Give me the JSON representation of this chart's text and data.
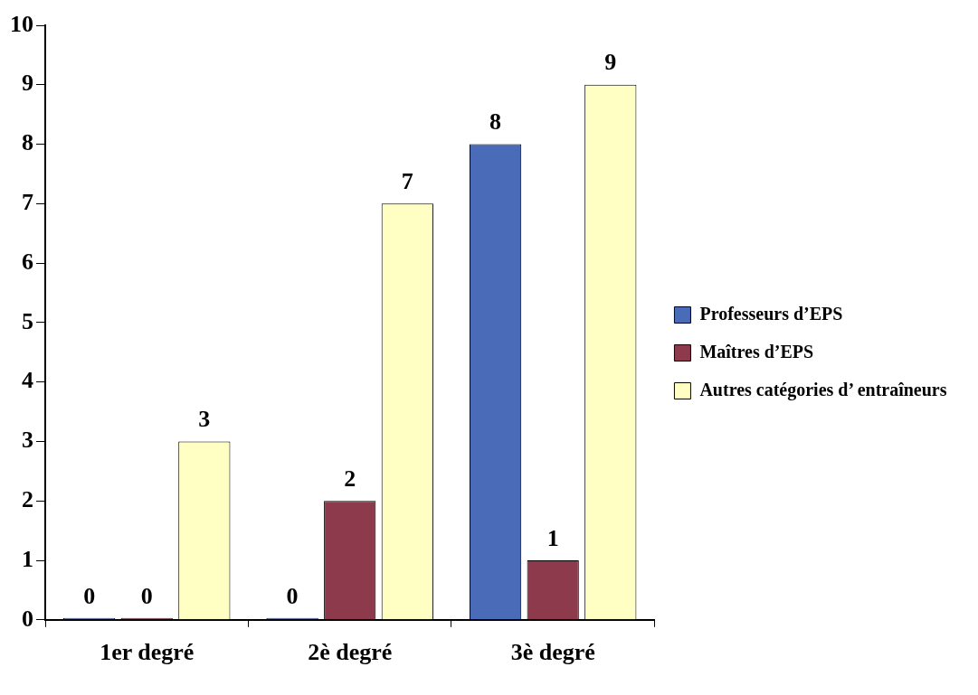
{
  "chart_data": {
    "type": "bar",
    "categories": [
      "1er degré",
      "2è degré",
      "3è degré"
    ],
    "series": [
      {
        "name": "Professeurs d’EPS",
        "color": "#4a6cb8",
        "values": [
          0,
          0,
          8
        ]
      },
      {
        "name": "Maîtres d’EPS",
        "color": "#8c3a4c",
        "values": [
          0,
          2,
          1
        ]
      },
      {
        "name": "Autres catégories d’ entraîneurs",
        "color": "#ffffc4",
        "values": [
          3,
          7,
          9
        ]
      }
    ],
    "ylim": [
      0,
      10
    ],
    "yticks": [
      0,
      1,
      2,
      3,
      4,
      5,
      6,
      7,
      8,
      9,
      10
    ],
    "grid": false,
    "legend": "right",
    "data_labels": true
  }
}
